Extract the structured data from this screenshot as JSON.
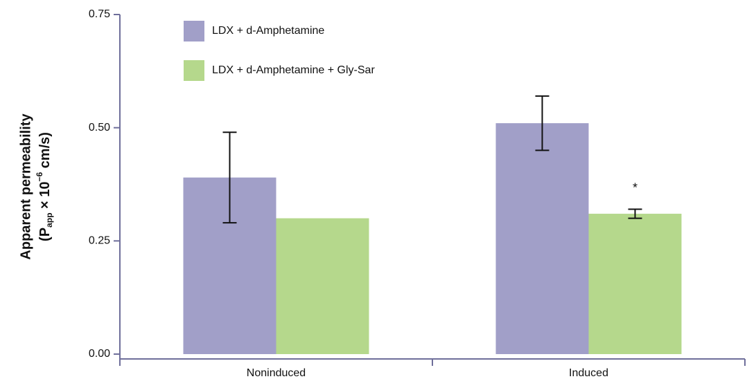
{
  "chart_data": {
    "type": "bar",
    "ylabel": "Apparent permeability",
    "ylabel_line2": [
      "(P",
      "app",
      " × 10",
      "−6",
      " cm/s)"
    ],
    "categories": [
      "Noninduced",
      "Induced"
    ],
    "series": [
      {
        "name": "LDX + d-Amphetamine",
        "color": "#a19fc8",
        "values": [
          0.39,
          0.51
        ],
        "errors": [
          0.1,
          0.06
        ]
      },
      {
        "name": "LDX + d-Amphetamine + Gly-Sar",
        "color": "#b5d88c",
        "values": [
          0.3,
          0.31
        ],
        "errors": [
          null,
          0.01
        ],
        "annotations": [
          null,
          "*"
        ]
      }
    ],
    "ylim": [
      0,
      0.75
    ],
    "yticks": [
      {
        "value": 0,
        "label": "0.00"
      },
      {
        "value": 0.25,
        "label": "0.25"
      },
      {
        "value": 0.5,
        "label": "0.50"
      },
      {
        "value": 0.75,
        "label": "0.75"
      }
    ]
  }
}
